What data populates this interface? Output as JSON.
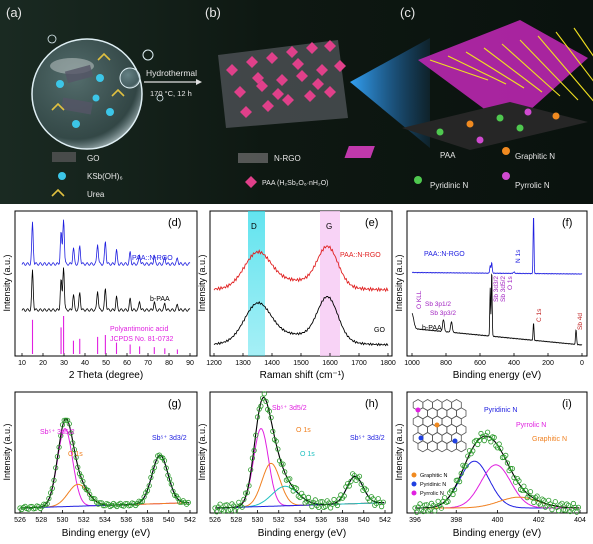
{
  "top": {
    "label_a": "(a)",
    "label_b": "(b)",
    "label_c": "(c)",
    "hydrothermal": "Hydrothermal",
    "condition": "170 °C, 12 h",
    "legend_a": [
      "GO",
      "KSb(OH)₆",
      "Urea"
    ],
    "legend_b": [
      "N-RGO",
      "PAA (H₂Sb₂O₆·nH₂O)"
    ],
    "legend_c": [
      "PAA",
      "Graphitic N",
      "Pyridinic N",
      "Pyrrolic N"
    ],
    "colors": {
      "bg_dark": "#0c1410",
      "beam": "#2b8fe0",
      "paa": "#e040c8",
      "graphitic": "#f08a20",
      "pyridinic": "#4fc84f",
      "pyrrolic": "#d04ad0"
    }
  },
  "panels": [
    {
      "id": "d",
      "tag": "(d)",
      "xlabel": "2 Theta (degree)",
      "ylabel": "Intensity (a.u.)",
      "xticks": [
        "10",
        "20",
        "30",
        "40",
        "50",
        "60",
        "70",
        "80",
        "90"
      ],
      "labels": [
        "PAA::N-RGO",
        "b-PAA",
        "Polyantimonic acid",
        "JCPDS No. 81-0732"
      ]
    },
    {
      "id": "e",
      "tag": "(e)",
      "xlabel": "Raman shift (cm⁻¹)",
      "ylabel": "Intensity (a.u.)",
      "xticks": [
        "1200",
        "1300",
        "1400",
        "1500",
        "1600",
        "1700",
        "1800"
      ],
      "labels": [
        "D",
        "G",
        "PAA::N-RGO",
        "GO"
      ]
    },
    {
      "id": "f",
      "tag": "(f)",
      "xlabel": "Binding energy (eV)",
      "ylabel": "Intensity (a.u.)",
      "xticks": [
        "1000",
        "800",
        "600",
        "400",
        "200",
        "0"
      ],
      "labels": [
        "PAA::N-RGO",
        "N 1s",
        "b-PAA",
        "O KLL",
        "Sb 3p1/2",
        "Sb 3p3/2",
        "Sb 3d3/2",
        "Sb 3d5/2",
        "O 1s",
        "C 1s",
        "Sb 4d"
      ]
    },
    {
      "id": "g",
      "tag": "(g)",
      "xlabel": "Binding energy (eV)",
      "ylabel": "Intensity (a.u.)",
      "xticks": [
        "526",
        "528",
        "530",
        "532",
        "534",
        "536",
        "538",
        "540",
        "542"
      ],
      "labels": [
        "Sb⁵⁺ 3d5/2",
        "O 1s",
        "Sb⁵⁺ 3d3/2"
      ]
    },
    {
      "id": "h",
      "tag": "(h)",
      "xlabel": "Binding energy (eV)",
      "ylabel": "Intensity (a.u.)",
      "xticks": [
        "526",
        "528",
        "530",
        "532",
        "534",
        "536",
        "538",
        "540",
        "542"
      ],
      "labels": [
        "Sb⁵⁺ 3d5/2",
        "O 1s",
        "O 1s",
        "Sb⁵⁺ 3d3/2"
      ]
    },
    {
      "id": "i",
      "tag": "(i)",
      "xlabel": "Binding energy (eV)",
      "ylabel": "Intensity (a.u.)",
      "xticks": [
        "396",
        "398",
        "400",
        "402",
        "404"
      ],
      "labels": [
        "Pyridinic N",
        "Pyrrolic N",
        "Graphitic N",
        "Graphitic N",
        "Pyridinic N",
        "Pyrrolic N"
      ]
    }
  ],
  "chart_data": [
    {
      "type": "line",
      "xlabel": "2 Theta (degree)",
      "ylabel": "Intensity (a.u.)",
      "xlim": [
        10,
        90
      ],
      "series": [
        {
          "name": "PAA::N-RGO",
          "color": "#2020e0",
          "peaks_x": [
            15.0,
            28.6,
            29.8,
            34.5,
            37.5,
            46.0,
            49.7,
            55.0,
            61.5,
            66.0,
            73.0,
            78.0,
            84.0
          ]
        },
        {
          "name": "b-PAA",
          "color": "#000000",
          "peaks_x": [
            15.0,
            28.6,
            29.8,
            34.5,
            37.5,
            46.0,
            49.7,
            55.0,
            61.5,
            66.0,
            73.0,
            78.0,
            84.0
          ]
        },
        {
          "name": "Polyantimonic acid",
          "color": "#e020e0",
          "peaks_x": [
            15.0,
            28.6,
            29.8,
            34.5,
            37.5,
            46.0,
            49.7,
            55.0,
            61.5,
            66.0,
            73.0,
            78.0,
            84.0
          ]
        }
      ]
    },
    {
      "type": "line",
      "xlabel": "Raman shift (cm⁻¹)",
      "ylabel": "Intensity (a.u.)",
      "xlim": [
        1200,
        1800
      ],
      "bands": [
        {
          "label": "D",
          "x": [
            1320,
            1375
          ]
        },
        {
          "label": "G",
          "x": [
            1555,
            1620
          ]
        }
      ],
      "series": [
        {
          "name": "PAA::N-RGO",
          "color": "#e02020",
          "peaks_x": [
            1350,
            1590
          ]
        },
        {
          "name": "GO",
          "color": "#000000",
          "peaks_x": [
            1350,
            1595
          ]
        }
      ]
    },
    {
      "type": "line",
      "xlabel": "Binding energy (eV)",
      "ylabel": "Intensity (a.u.)",
      "xlim": [
        1000,
        0
      ],
      "series": [
        {
          "name": "PAA::N-RGO",
          "color": "#2020e0",
          "peaks_x": [
            540,
            531,
            400,
            285
          ]
        },
        {
          "name": "b-PAA",
          "color": "#000000",
          "peaks_x": [
            1000,
            815,
            768,
            540,
            531,
            285,
            35
          ]
        }
      ]
    },
    {
      "type": "line",
      "xlabel": "Binding energy (eV)",
      "ylabel": "Intensity (a.u.)",
      "xlim": [
        526,
        543
      ],
      "series": [
        {
          "name": "Sb⁵⁺ 3d5/2",
          "color": "#e020e0",
          "peaks_x": [
            530.5
          ]
        },
        {
          "name": "O 1s",
          "color": "#f08020",
          "peaks_x": [
            531.8
          ]
        },
        {
          "name": "Sb⁵⁺ 3d3/2",
          "color": "#2020e0",
          "peaks_x": [
            540.0
          ]
        }
      ]
    },
    {
      "type": "line",
      "xlabel": "Binding energy (eV)",
      "ylabel": "Intensity (a.u.)",
      "xlim": [
        526,
        543
      ],
      "series": [
        {
          "name": "Sb⁵⁺ 3d5/2",
          "color": "#e020e0",
          "peaks_x": [
            530.6
          ]
        },
        {
          "name": "O 1s",
          "color": "#f08020",
          "peaks_x": [
            531.6
          ]
        },
        {
          "name": "O 1s",
          "color": "#20c0c0",
          "peaks_x": [
            533.0
          ]
        },
        {
          "name": "Sb⁵⁺ 3d3/2",
          "color": "#2020e0",
          "peaks_x": [
            540.0
          ]
        }
      ]
    },
    {
      "type": "line",
      "xlabel": "Binding energy (eV)",
      "ylabel": "Intensity (a.u.)",
      "xlim": [
        395,
        405
      ],
      "series": [
        {
          "name": "Pyridinic N",
          "color": "#2020e0",
          "peaks_x": [
            398.6
          ]
        },
        {
          "name": "Pyrrolic N",
          "color": "#e020e0",
          "peaks_x": [
            399.9
          ]
        },
        {
          "name": "Graphitic N",
          "color": "#f08020",
          "peaks_x": [
            401.3
          ]
        }
      ]
    }
  ]
}
